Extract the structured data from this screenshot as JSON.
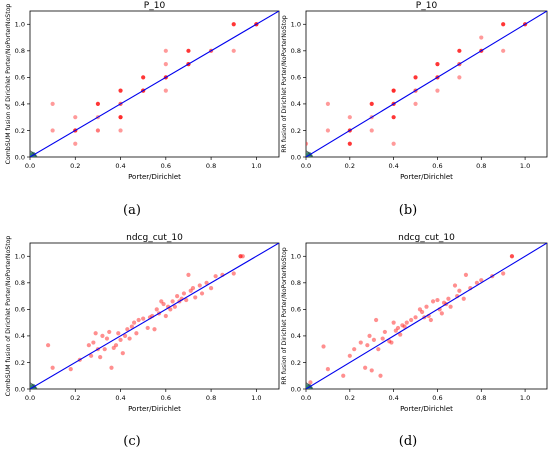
{
  "chart_data": [
    {
      "type": "scatter",
      "panel_label": "(a)",
      "title": "P_10",
      "xlabel": "Porter/Dirichlet",
      "ylabel": "CombSUM fusion of Dirichlet Porter/NoPorterNoStop",
      "xlim": [
        0,
        1.1
      ],
      "ylim": [
        0,
        1.1
      ],
      "xticks": [
        "0.0",
        "0.2",
        "0.4",
        "0.6",
        "0.8",
        "1.0"
      ],
      "yticks": [
        "0.0",
        "0.2",
        "0.4",
        "0.6",
        "0.8",
        "1.0"
      ],
      "reference_line": "y = x",
      "colors": {
        "points": "#ff2020",
        "line": "#0000ee",
        "cluster": "#2e7d6b"
      },
      "points": {
        "x": [
          0.1,
          0.1,
          0.2,
          0.2,
          0.2,
          0.2,
          0.3,
          0.3,
          0.3,
          0.4,
          0.4,
          0.4,
          0.4,
          0.4,
          0.5,
          0.5,
          0.5,
          0.6,
          0.6,
          0.6,
          0.6,
          0.7,
          0.7,
          0.7,
          0.8,
          0.9,
          0.9,
          1.0,
          1.0
        ],
        "y": [
          0.4,
          0.2,
          0.1,
          0.2,
          0.3,
          0.2,
          0.4,
          0.3,
          0.2,
          0.5,
          0.4,
          0.3,
          0.2,
          0.3,
          0.5,
          0.6,
          0.5,
          0.8,
          0.7,
          0.6,
          0.5,
          0.8,
          0.7,
          0.7,
          0.8,
          1.0,
          0.8,
          1.0,
          1.0
        ],
        "a": [
          0.45,
          0.45,
          0.45,
          0.9,
          0.45,
          0.45,
          0.9,
          0.45,
          0.6,
          0.9,
          0.7,
          0.45,
          0.45,
          0.9,
          0.9,
          0.9,
          0.45,
          0.45,
          0.45,
          0.95,
          0.45,
          0.9,
          0.9,
          0.45,
          0.7,
          0.9,
          0.45,
          0.95,
          0.45
        ]
      },
      "cluster_near_origin": true
    },
    {
      "type": "scatter",
      "panel_label": "(b)",
      "title": "P_10",
      "xlabel": "Porter/Dirichlet",
      "ylabel": "RR fusion of Dirichlet Porter/NoPorterNoStop",
      "xlim": [
        0,
        1.1
      ],
      "ylim": [
        0,
        1.1
      ],
      "xticks": [
        "0.0",
        "0.2",
        "0.4",
        "0.6",
        "0.8",
        "1.0"
      ],
      "yticks": [
        "0.0",
        "0.2",
        "0.4",
        "0.6",
        "0.8",
        "1.0"
      ],
      "reference_line": "y = x",
      "colors": {
        "points": "#ff2020",
        "line": "#0000ee",
        "cluster": "#2e7d6b"
      },
      "points": {
        "x": [
          0.0,
          0.1,
          0.1,
          0.2,
          0.2,
          0.2,
          0.3,
          0.3,
          0.3,
          0.4,
          0.4,
          0.4,
          0.4,
          0.5,
          0.5,
          0.5,
          0.6,
          0.6,
          0.6,
          0.7,
          0.7,
          0.7,
          0.8,
          0.8,
          0.9,
          0.9,
          1.0
        ],
        "y": [
          0.1,
          0.4,
          0.2,
          0.3,
          0.2,
          0.1,
          0.4,
          0.3,
          0.2,
          0.5,
          0.4,
          0.3,
          0.1,
          0.6,
          0.5,
          0.4,
          0.7,
          0.6,
          0.5,
          0.8,
          0.7,
          0.6,
          0.9,
          0.8,
          1.0,
          0.8,
          1.0
        ],
        "a": [
          0.45,
          0.45,
          0.45,
          0.45,
          0.9,
          0.9,
          0.9,
          0.45,
          0.45,
          0.95,
          0.9,
          0.9,
          0.45,
          0.9,
          0.7,
          0.45,
          0.9,
          0.9,
          0.45,
          0.9,
          0.7,
          0.45,
          0.45,
          0.9,
          0.9,
          0.45,
          0.9
        ]
      },
      "cluster_near_origin": true
    },
    {
      "type": "scatter",
      "panel_label": "(c)",
      "title": "ndcg_cut_10",
      "xlabel": "Porter/Dirichlet",
      "ylabel": "CombSUM fusion of Dirichlet Porter/NoPorterNoStop",
      "xlim": [
        0,
        1.1
      ],
      "ylim": [
        0,
        1.1
      ],
      "xticks": [
        "0.0",
        "0.2",
        "0.4",
        "0.6",
        "0.8",
        "1.0"
      ],
      "yticks": [
        "0.0",
        "0.2",
        "0.4",
        "0.6",
        "0.8",
        "1.0"
      ],
      "reference_line": "y = x",
      "colors": {
        "points": "#ff2020",
        "line": "#0000ee",
        "cluster": "#2e7d6b"
      },
      "points": {
        "x": [
          0.08,
          0.1,
          0.18,
          0.22,
          0.26,
          0.27,
          0.28,
          0.29,
          0.3,
          0.31,
          0.32,
          0.33,
          0.34,
          0.35,
          0.36,
          0.37,
          0.38,
          0.39,
          0.4,
          0.41,
          0.42,
          0.43,
          0.44,
          0.45,
          0.46,
          0.47,
          0.48,
          0.5,
          0.52,
          0.53,
          0.54,
          0.55,
          0.56,
          0.57,
          0.58,
          0.59,
          0.6,
          0.61,
          0.62,
          0.63,
          0.64,
          0.65,
          0.66,
          0.67,
          0.68,
          0.69,
          0.7,
          0.71,
          0.72,
          0.73,
          0.75,
          0.76,
          0.78,
          0.8,
          0.82,
          0.85,
          0.9,
          0.93,
          0.94
        ],
        "y": [
          0.33,
          0.16,
          0.15,
          0.22,
          0.33,
          0.25,
          0.35,
          0.42,
          0.3,
          0.24,
          0.4,
          0.3,
          0.38,
          0.43,
          0.16,
          0.31,
          0.33,
          0.42,
          0.37,
          0.27,
          0.4,
          0.45,
          0.38,
          0.47,
          0.5,
          0.42,
          0.52,
          0.53,
          0.46,
          0.54,
          0.55,
          0.45,
          0.6,
          0.57,
          0.66,
          0.64,
          0.55,
          0.62,
          0.6,
          0.66,
          0.62,
          0.7,
          0.66,
          0.68,
          0.72,
          0.67,
          0.86,
          0.74,
          0.76,
          0.69,
          0.78,
          0.72,
          0.8,
          0.76,
          0.85,
          0.86,
          0.87,
          1.0,
          1.0
        ],
        "a": [
          0.5,
          0.5,
          0.5,
          0.5,
          0.5,
          0.5,
          0.5,
          0.5,
          0.5,
          0.5,
          0.5,
          0.5,
          0.5,
          0.5,
          0.5,
          0.5,
          0.5,
          0.5,
          0.5,
          0.5,
          0.5,
          0.5,
          0.5,
          0.5,
          0.5,
          0.5,
          0.5,
          0.5,
          0.5,
          0.5,
          0.5,
          0.5,
          0.5,
          0.5,
          0.5,
          0.5,
          0.5,
          0.5,
          0.5,
          0.5,
          0.5,
          0.5,
          0.5,
          0.5,
          0.5,
          0.5,
          0.5,
          0.5,
          0.5,
          0.5,
          0.5,
          0.5,
          0.5,
          0.5,
          0.5,
          0.5,
          0.5,
          0.8,
          0.5
        ]
      },
      "cluster_near_origin": true
    },
    {
      "type": "scatter",
      "panel_label": "(d)",
      "title": "ndcg_cut_10",
      "xlabel": "Porter/Dirichlet",
      "ylabel": "RR fusion of Dirichlet Porter/NoPorterNoStop",
      "xlim": [
        0,
        1.1
      ],
      "ylim": [
        0,
        1.1
      ],
      "xticks": [
        "0.0",
        "0.2",
        "0.4",
        "0.6",
        "0.8",
        "1.0"
      ],
      "yticks": [
        "0.0",
        "0.2",
        "0.4",
        "0.6",
        "0.8",
        "1.0"
      ],
      "reference_line": "y = x",
      "colors": {
        "points": "#ff2020",
        "line": "#0000ee",
        "cluster": "#2e7d6b"
      },
      "points": {
        "x": [
          0.02,
          0.08,
          0.1,
          0.17,
          0.2,
          0.22,
          0.25,
          0.27,
          0.28,
          0.29,
          0.3,
          0.31,
          0.32,
          0.33,
          0.34,
          0.35,
          0.36,
          0.38,
          0.39,
          0.4,
          0.41,
          0.42,
          0.43,
          0.44,
          0.45,
          0.46,
          0.48,
          0.5,
          0.52,
          0.53,
          0.54,
          0.55,
          0.56,
          0.57,
          0.58,
          0.6,
          0.61,
          0.62,
          0.63,
          0.64,
          0.65,
          0.66,
          0.68,
          0.69,
          0.7,
          0.72,
          0.73,
          0.75,
          0.78,
          0.8,
          0.85,
          0.9,
          0.94
        ],
        "y": [
          0.05,
          0.32,
          0.15,
          0.1,
          0.25,
          0.3,
          0.35,
          0.16,
          0.33,
          0.4,
          0.14,
          0.37,
          0.52,
          0.3,
          0.1,
          0.38,
          0.43,
          0.36,
          0.35,
          0.5,
          0.44,
          0.46,
          0.41,
          0.48,
          0.47,
          0.5,
          0.52,
          0.54,
          0.6,
          0.58,
          0.54,
          0.62,
          0.55,
          0.52,
          0.66,
          0.67,
          0.6,
          0.57,
          0.65,
          0.64,
          0.68,
          0.62,
          0.78,
          0.7,
          0.74,
          0.68,
          0.86,
          0.76,
          0.8,
          0.82,
          0.85,
          0.87,
          1.0
        ],
        "a": [
          0.5,
          0.5,
          0.5,
          0.5,
          0.5,
          0.5,
          0.5,
          0.5,
          0.5,
          0.5,
          0.5,
          0.5,
          0.5,
          0.5,
          0.5,
          0.5,
          0.5,
          0.5,
          0.5,
          0.5,
          0.5,
          0.5,
          0.5,
          0.5,
          0.5,
          0.5,
          0.5,
          0.5,
          0.5,
          0.5,
          0.5,
          0.5,
          0.5,
          0.5,
          0.5,
          0.5,
          0.5,
          0.5,
          0.5,
          0.5,
          0.5,
          0.5,
          0.5,
          0.5,
          0.5,
          0.5,
          0.5,
          0.5,
          0.5,
          0.5,
          0.5,
          0.5,
          0.8
        ]
      },
      "cluster_near_origin": true
    }
  ]
}
